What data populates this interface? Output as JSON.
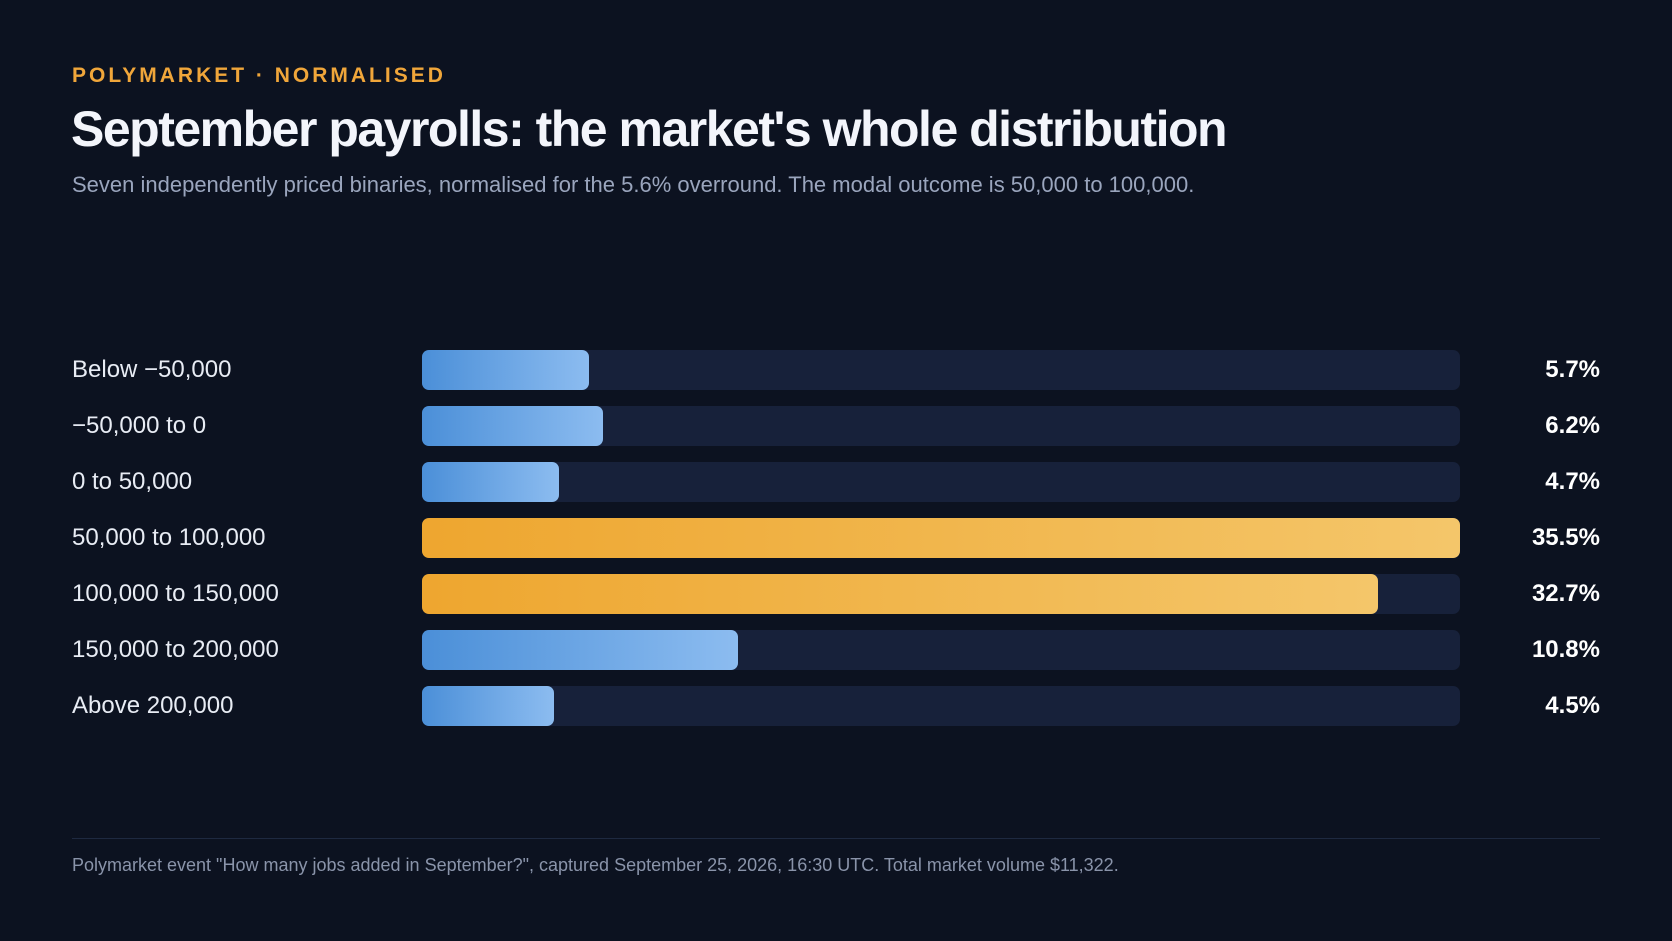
{
  "header": {
    "kicker": "POLYMARKET · NORMALISED",
    "title": "September payrolls: the market's whole distribution",
    "subtitle": "Seven independently priced binaries, normalised for the 5.6% overround. The modal outcome is 50,000 to 100,000."
  },
  "colors": {
    "background": "#0c1220",
    "accent": "#f0a63a",
    "bar_default": "#6aa6e6",
    "bar_highlight": "#f2b84f",
    "track": "#17213a"
  },
  "chart_data": {
    "type": "bar",
    "orientation": "horizontal",
    "title": "September payrolls: the market's whole distribution",
    "xlim": [
      0,
      35.5
    ],
    "categories": [
      "Below −50,000",
      "−50,000 to 0",
      "0 to 50,000",
      "50,000 to 100,000",
      "100,000 to 150,000",
      "150,000 to 200,000",
      "Above 200,000"
    ],
    "values": [
      5.7,
      6.2,
      4.7,
      35.5,
      32.7,
      10.8,
      4.5
    ],
    "value_labels": [
      "5.7%",
      "6.2%",
      "4.7%",
      "35.5%",
      "32.7%",
      "10.8%",
      "4.5%"
    ],
    "highlighted": [
      false,
      false,
      false,
      true,
      true,
      false,
      false
    ],
    "grid": false,
    "legend": "none"
  },
  "footer": {
    "source": "Polymarket event \"How many jobs added in September?\", captured September 25, 2026, 16:30 UTC. Total market volume $11,322."
  }
}
